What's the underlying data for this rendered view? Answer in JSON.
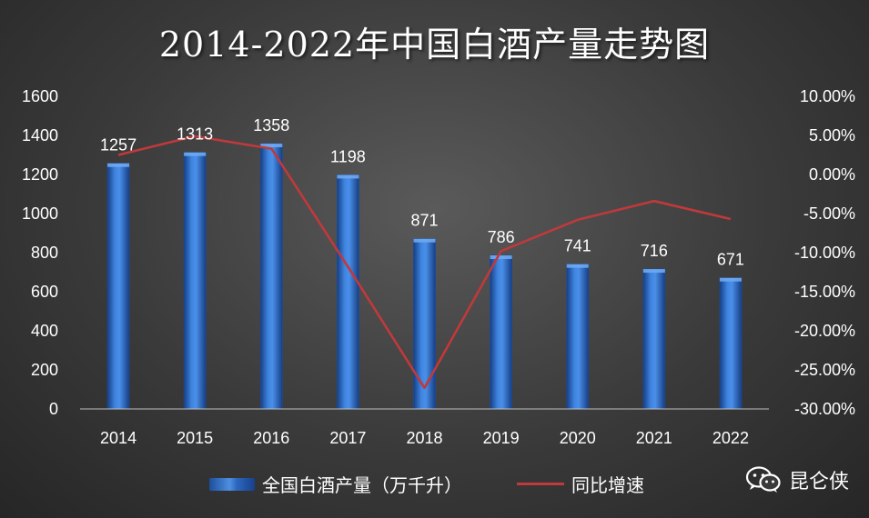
{
  "title": "2014-2022年中国白酒产量走势图",
  "colors": {
    "bar": "#2e6fd0",
    "line": "#c0393b"
  },
  "legend": {
    "bar_label": "全国白酒产量（万千升）",
    "line_label": "同比增速"
  },
  "watermark": {
    "text": "昆仑侠",
    "icon": "wechat-icon"
  },
  "chart_data": {
    "type": "bar",
    "categories": [
      "2014",
      "2015",
      "2016",
      "2017",
      "2018",
      "2019",
      "2020",
      "2021",
      "2022"
    ],
    "series": [
      {
        "name": "全国白酒产量（万千升）",
        "type": "bar",
        "axis": "left",
        "values": [
          1257,
          1313,
          1358,
          1198,
          871,
          786,
          741,
          716,
          671
        ],
        "labels": [
          "1257",
          "1313",
          "1358",
          "1198",
          "871",
          "786",
          "741",
          "716",
          "671"
        ]
      },
      {
        "name": "同比增速",
        "type": "line",
        "axis": "right",
        "values": [
          2.5,
          4.9,
          3.3,
          -11.8,
          -27.3,
          -9.8,
          -5.8,
          -3.4,
          -5.7
        ]
      }
    ],
    "y_left": {
      "ylim": [
        0,
        1600
      ],
      "ticks": [
        "0",
        "200",
        "400",
        "600",
        "800",
        "1000",
        "1200",
        "1400",
        "1600"
      ]
    },
    "y_right": {
      "ylim": [
        -30,
        10
      ],
      "ticks": [
        "-30.00%",
        "-25.00%",
        "-20.00%",
        "-15.00%",
        "-10.00%",
        "-5.00%",
        "0.00%",
        "5.00%",
        "10.00%"
      ]
    },
    "grid": false,
    "legend_position": "bottom"
  }
}
